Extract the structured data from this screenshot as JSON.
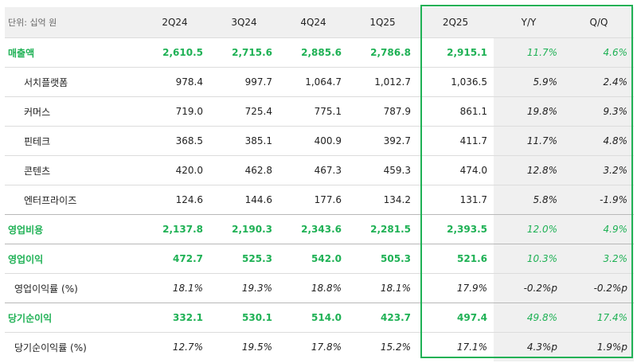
{
  "header": {
    "unit": "단위: 십억 원",
    "cols": [
      "2Q24",
      "3Q24",
      "4Q24",
      "1Q25",
      "2Q25",
      "Y/Y",
      "Q/Q"
    ]
  },
  "rows": [
    {
      "label": "매출액",
      "v": [
        "2,610.5",
        "2,715.6",
        "2,885.6",
        "2,786.8",
        "2,915.1",
        "11.7%",
        "4.6%"
      ]
    },
    {
      "label": "서치플랫폼",
      "v": [
        "978.4",
        "997.7",
        "1,064.7",
        "1,012.7",
        "1,036.5",
        "5.9%",
        "2.4%"
      ]
    },
    {
      "label": "커머스",
      "v": [
        "719.0",
        "725.4",
        "775.1",
        "787.9",
        "861.1",
        "19.8%",
        "9.3%"
      ]
    },
    {
      "label": "핀테크",
      "v": [
        "368.5",
        "385.1",
        "400.9",
        "392.7",
        "411.7",
        "11.7%",
        "4.8%"
      ]
    },
    {
      "label": "콘텐츠",
      "v": [
        "420.0",
        "462.8",
        "467.3",
        "459.3",
        "474.0",
        "12.8%",
        "3.2%"
      ]
    },
    {
      "label": "엔터프라이즈",
      "v": [
        "124.6",
        "144.6",
        "177.6",
        "134.2",
        "131.7",
        "5.8%",
        "-1.9%"
      ]
    },
    {
      "label": "영업비용",
      "v": [
        "2,137.8",
        "2,190.3",
        "2,343.6",
        "2,281.5",
        "2,393.5",
        "12.0%",
        "4.9%"
      ]
    },
    {
      "label": "영업이익",
      "v": [
        "472.7",
        "525.3",
        "542.0",
        "505.3",
        "521.6",
        "10.3%",
        "3.2%"
      ]
    },
    {
      "label": "영업이익률 (%)",
      "v": [
        "18.1%",
        "19.3%",
        "18.8%",
        "18.1%",
        "17.9%",
        "-0.2%p",
        "-0.2%p"
      ]
    },
    {
      "label": "당기순이익",
      "v": [
        "332.1",
        "530.1",
        "514.0",
        "423.7",
        "497.4",
        "49.8%",
        "17.4%"
      ]
    },
    {
      "label": "당기순이익률 (%)",
      "v": [
        "12.7%",
        "19.5%",
        "17.8%",
        "15.2%",
        "17.1%",
        "4.3%p",
        "1.9%p"
      ]
    }
  ]
}
